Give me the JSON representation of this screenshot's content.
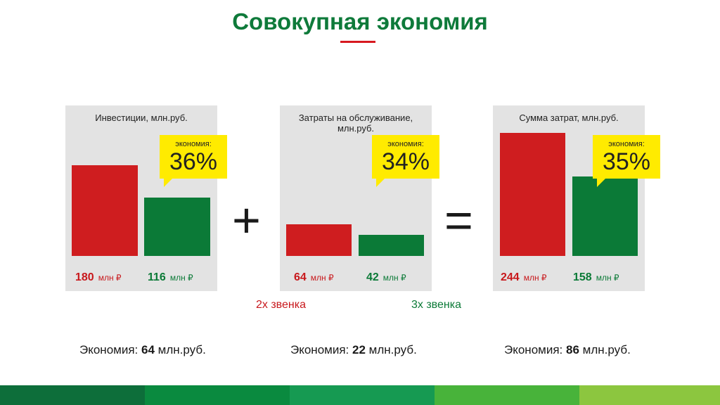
{
  "title": "Совокупная экономия",
  "colors": {
    "red": "#cf1d1f",
    "green": "#0b7a37",
    "callout": "#ffeb00",
    "title": "#0e7a3a"
  },
  "operators": {
    "plus": "+",
    "equals": "="
  },
  "notes": {
    "red": "2х звенка",
    "green": "3х звенка"
  },
  "chart_data": [
    {
      "type": "bar",
      "title": "Инвестиции, млн.руб.",
      "categories": [
        "",
        ""
      ],
      "values": [
        180,
        116
      ],
      "value_labels": [
        "180",
        "116"
      ],
      "unit": "млн ₽",
      "callout": {
        "label": "экономия:",
        "value": "36%"
      },
      "saving": {
        "prefix": "Экономия:",
        "value": "64",
        "suffix": "млн.руб."
      }
    },
    {
      "type": "bar",
      "title": "Затраты на обслуживание, млн.руб.",
      "categories": [
        "",
        ""
      ],
      "values": [
        64,
        42
      ],
      "value_labels": [
        "64",
        "42"
      ],
      "unit": "млн ₽",
      "callout": {
        "label": "экономия:",
        "value": "34%"
      },
      "saving": {
        "prefix": "Экономия:",
        "value": "22",
        "suffix": "млн.руб."
      }
    },
    {
      "type": "bar",
      "title": "Сумма затрат, млн.руб.",
      "categories": [
        "",
        ""
      ],
      "values": [
        244,
        158
      ],
      "value_labels": [
        "244",
        "158"
      ],
      "unit": "млн ₽",
      "callout": {
        "label": "экономия:",
        "value": "35%"
      },
      "saving": {
        "prefix": "Экономия:",
        "value": "86",
        "suffix": "млн.руб."
      }
    }
  ],
  "footer_stripe_colors": [
    "#0d6e3a",
    "#0a8a3f",
    "#169a52",
    "#48b33a",
    "#8cc63f"
  ]
}
